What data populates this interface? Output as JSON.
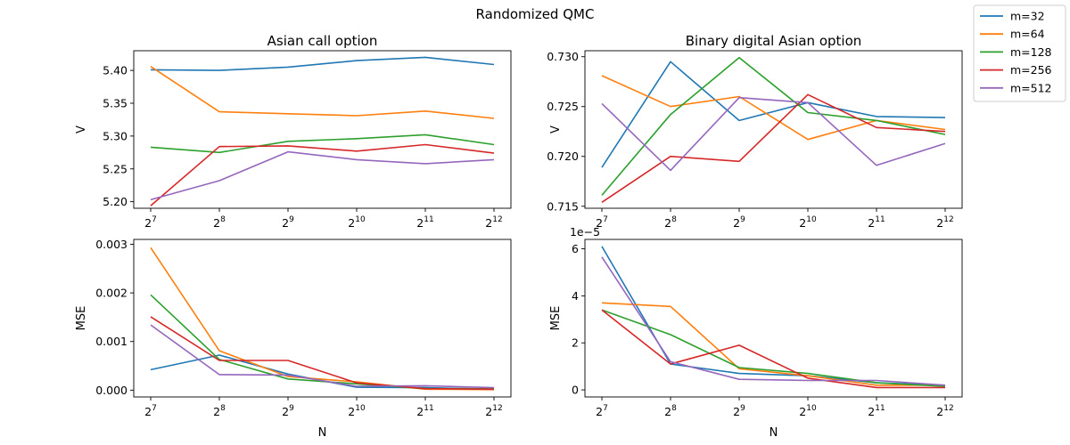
{
  "figure": {
    "suptitle": "Randomized QMC",
    "legend": {
      "placement": "top-right",
      "entries": [
        "m=32",
        "m=64",
        "m=128",
        "m=256",
        "m=512"
      ]
    }
  },
  "chart_data": [
    {
      "type": "line",
      "title": "Asian call option",
      "xlabel": "",
      "ylabel": "V",
      "x": [
        128,
        256,
        512,
        1024,
        2048,
        4096
      ],
      "xscale": "log2",
      "xtick_labels": [
        {
          "base": "2",
          "exp": "7"
        },
        {
          "base": "2",
          "exp": "8"
        },
        {
          "base": "2",
          "exp": "9"
        },
        {
          "base": "2",
          "exp": "10"
        },
        {
          "base": "2",
          "exp": "11"
        },
        {
          "base": "2",
          "exp": "12"
        }
      ],
      "ylim": [
        5.19,
        5.43
      ],
      "yticks": [
        5.2,
        5.25,
        5.3,
        5.35,
        5.4
      ],
      "ytick_labels": [
        "5.20",
        "5.25",
        "5.30",
        "5.35",
        "5.40"
      ],
      "y_offset_text": "",
      "grid": false,
      "series": [
        {
          "name": "m=32",
          "color": "#1f77b4",
          "values": [
            5.401,
            5.4,
            5.405,
            5.415,
            5.42,
            5.409
          ]
        },
        {
          "name": "m=64",
          "color": "#ff7f0e",
          "values": [
            5.406,
            5.337,
            5.334,
            5.331,
            5.338,
            5.327
          ]
        },
        {
          "name": "m=128",
          "color": "#2ca02c",
          "values": [
            5.283,
            5.275,
            5.292,
            5.296,
            5.302,
            5.287
          ]
        },
        {
          "name": "m=256",
          "color": "#d62728",
          "values": [
            5.194,
            5.284,
            5.285,
            5.277,
            5.287,
            5.274
          ]
        },
        {
          "name": "m=512",
          "color": "#9467bd",
          "values": [
            5.203,
            5.232,
            5.276,
            5.264,
            5.258,
            5.264
          ]
        }
      ]
    },
    {
      "type": "line",
      "title": "Binary digital Asian option",
      "xlabel": "",
      "ylabel": "V",
      "x": [
        128,
        256,
        512,
        1024,
        2048,
        4096
      ],
      "xscale": "log2",
      "xtick_labels": [
        {
          "base": "2",
          "exp": "7"
        },
        {
          "base": "2",
          "exp": "8"
        },
        {
          "base": "2",
          "exp": "9"
        },
        {
          "base": "2",
          "exp": "10"
        },
        {
          "base": "2",
          "exp": "11"
        },
        {
          "base": "2",
          "exp": "12"
        }
      ],
      "ylim": [
        0.7148,
        0.7306
      ],
      "yticks": [
        0.715,
        0.72,
        0.725,
        0.73
      ],
      "ytick_labels": [
        "0.715",
        "0.720",
        "0.725",
        "0.730"
      ],
      "y_offset_text": "",
      "grid": false,
      "series": [
        {
          "name": "m=32",
          "color": "#1f77b4",
          "values": [
            0.7189,
            0.7295,
            0.7236,
            0.7254,
            0.724,
            0.7239
          ]
        },
        {
          "name": "m=64",
          "color": "#ff7f0e",
          "values": [
            0.7281,
            0.725,
            0.726,
            0.7217,
            0.7236,
            0.7227
          ]
        },
        {
          "name": "m=128",
          "color": "#2ca02c",
          "values": [
            0.7161,
            0.7242,
            0.7299,
            0.7244,
            0.7236,
            0.7222
          ]
        },
        {
          "name": "m=256",
          "color": "#d62728",
          "values": [
            0.7154,
            0.72,
            0.7195,
            0.7262,
            0.7229,
            0.7225
          ]
        },
        {
          "name": "m=512",
          "color": "#9467bd",
          "values": [
            0.7253,
            0.7186,
            0.7259,
            0.7254,
            0.7191,
            0.7213
          ]
        }
      ]
    },
    {
      "type": "line",
      "title": "",
      "xlabel": "N",
      "ylabel": "MSE",
      "x": [
        128,
        256,
        512,
        1024,
        2048,
        4096
      ],
      "xscale": "log2",
      "xtick_labels": [
        {
          "base": "2",
          "exp": "7"
        },
        {
          "base": "2",
          "exp": "8"
        },
        {
          "base": "2",
          "exp": "9"
        },
        {
          "base": "2",
          "exp": "10"
        },
        {
          "base": "2",
          "exp": "11"
        },
        {
          "base": "2",
          "exp": "12"
        }
      ],
      "ylim": [
        -0.00014,
        0.0031
      ],
      "yticks": [
        0.0,
        0.001,
        0.002,
        0.003
      ],
      "ytick_labels": [
        "0.000",
        "0.001",
        "0.002",
        "0.003"
      ],
      "y_offset_text": "",
      "grid": false,
      "series": [
        {
          "name": "m=32",
          "color": "#1f77b4",
          "values": [
            0.00042,
            0.00072,
            0.00033,
            6e-05,
            5e-05,
            2e-05
          ]
        },
        {
          "name": "m=64",
          "color": "#ff7f0e",
          "values": [
            0.00293,
            0.00081,
            0.00028,
            0.00017,
            2e-05,
            1e-05
          ]
        },
        {
          "name": "m=128",
          "color": "#2ca02c",
          "values": [
            0.00196,
            0.00063,
            0.00023,
            0.00013,
            3e-05,
            3e-05
          ]
        },
        {
          "name": "m=256",
          "color": "#d62728",
          "values": [
            0.00151,
            0.00061,
            0.00061,
            0.00015,
            3e-05,
            2e-05
          ]
        },
        {
          "name": "m=512",
          "color": "#9467bd",
          "values": [
            0.00134,
            0.00032,
            0.00031,
            8e-05,
            9e-05,
            5e-05
          ]
        }
      ]
    },
    {
      "type": "line",
      "title": "",
      "xlabel": "N",
      "ylabel": "MSE",
      "x": [
        128,
        256,
        512,
        1024,
        2048,
        4096
      ],
      "xscale": "log2",
      "xtick_labels": [
        {
          "base": "2",
          "exp": "7"
        },
        {
          "base": "2",
          "exp": "8"
        },
        {
          "base": "2",
          "exp": "9"
        },
        {
          "base": "2",
          "exp": "10"
        },
        {
          "base": "2",
          "exp": "11"
        },
        {
          "base": "2",
          "exp": "12"
        }
      ],
      "ylim": [
        -3e-06,
        6.4e-05
      ],
      "yticks": [
        0,
        2e-05,
        4e-05,
        6e-05
      ],
      "ytick_labels": [
        "0",
        "2",
        "4",
        "6"
      ],
      "y_offset_text": "1e−5",
      "grid": false,
      "series": [
        {
          "name": "m=32",
          "color": "#1f77b4",
          "values": [
            6.1e-05,
            1.1e-05,
            7e-06,
            6e-06,
            3e-06,
            2e-06
          ]
        },
        {
          "name": "m=64",
          "color": "#ff7f0e",
          "values": [
            3.7e-05,
            3.55e-05,
            9e-06,
            6e-06,
            2e-06,
            2e-06
          ]
        },
        {
          "name": "m=128",
          "color": "#2ca02c",
          "values": [
            3.4e-05,
            2.35e-05,
            9.5e-06,
            7e-06,
            3e-06,
            1.5e-06
          ]
        },
        {
          "name": "m=256",
          "color": "#d62728",
          "values": [
            3.4e-05,
            1.1e-05,
            1.9e-05,
            5e-06,
            1e-06,
            1e-06
          ]
        },
        {
          "name": "m=512",
          "color": "#9467bd",
          "values": [
            5.65e-05,
            1.2e-05,
            4.5e-06,
            4e-06,
            4e-06,
            2e-06
          ]
        }
      ]
    }
  ]
}
